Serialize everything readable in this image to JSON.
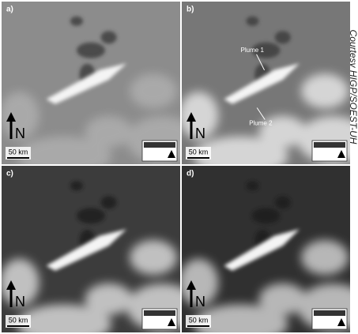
{
  "credit": "Courtesy HIGP/SOEST-UH",
  "panels": [
    {
      "label": "a)",
      "north": "N",
      "scale": "50 km"
    },
    {
      "label": "b)",
      "north": "N",
      "scale": "50 km",
      "annotations": [
        "Plume 1",
        "Plume 2"
      ]
    },
    {
      "label": "c)",
      "north": "N",
      "scale": "50 km"
    },
    {
      "label": "d)",
      "north": "N",
      "scale": "50 km"
    }
  ]
}
